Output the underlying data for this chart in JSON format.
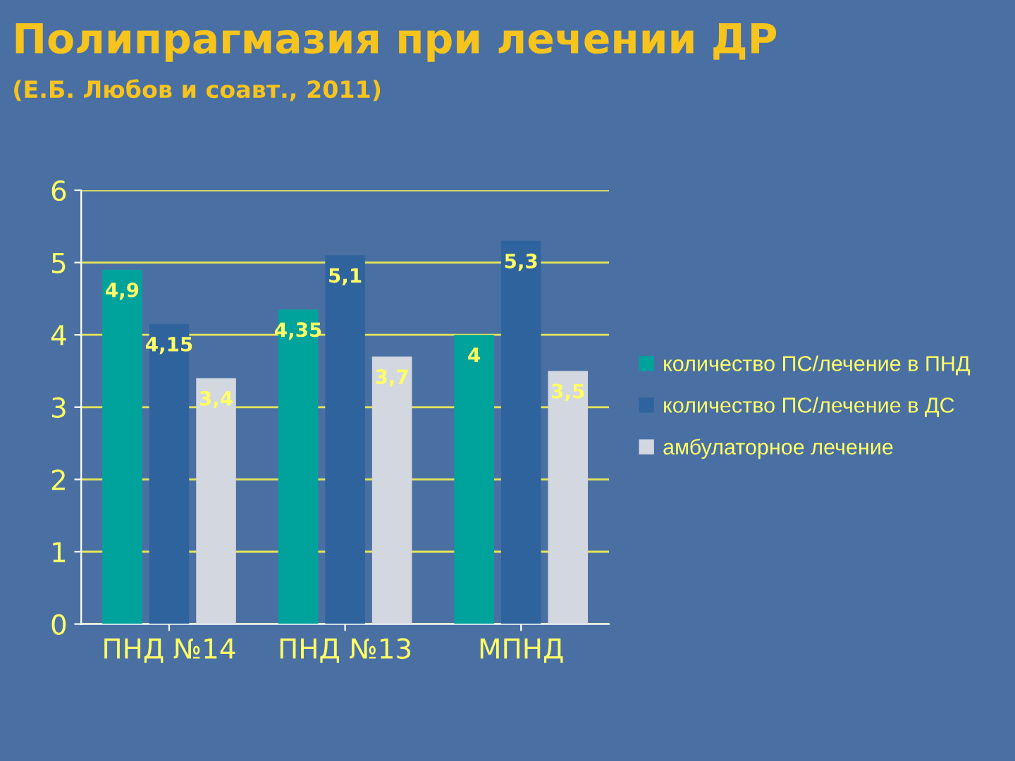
{
  "chart_data": {
    "type": "bar",
    "title": "Полипрагмазия при лечении ДР",
    "subtitle": "(Е.Б. Любов и соавт., 2011)",
    "categories": [
      "ПНД №14",
      "ПНД №13",
      "МПНД"
    ],
    "series": [
      {
        "name": "количество ПС/лечение в ПНД",
        "color": "#00a39b",
        "values": [
          4.9,
          4.35,
          4
        ],
        "value_labels": [
          "4,9",
          "4,35",
          "4"
        ]
      },
      {
        "name": "количество ПС/лечение в ДС",
        "color": "#2f639e",
        "values": [
          4.15,
          5.1,
          5.3
        ],
        "value_labels": [
          "4,15",
          "5,1",
          "5,3"
        ]
      },
      {
        "name": "амбулаторное лечение",
        "color": "#d3d7df",
        "values": [
          3.4,
          3.7,
          3.5
        ],
        "value_labels": [
          "3,4",
          "3,7",
          "3,5"
        ]
      }
    ],
    "ylim": [
      0,
      6
    ],
    "yticks": [
      0,
      1,
      2,
      3,
      4,
      5,
      6
    ],
    "grid": "y",
    "legend": "right"
  }
}
